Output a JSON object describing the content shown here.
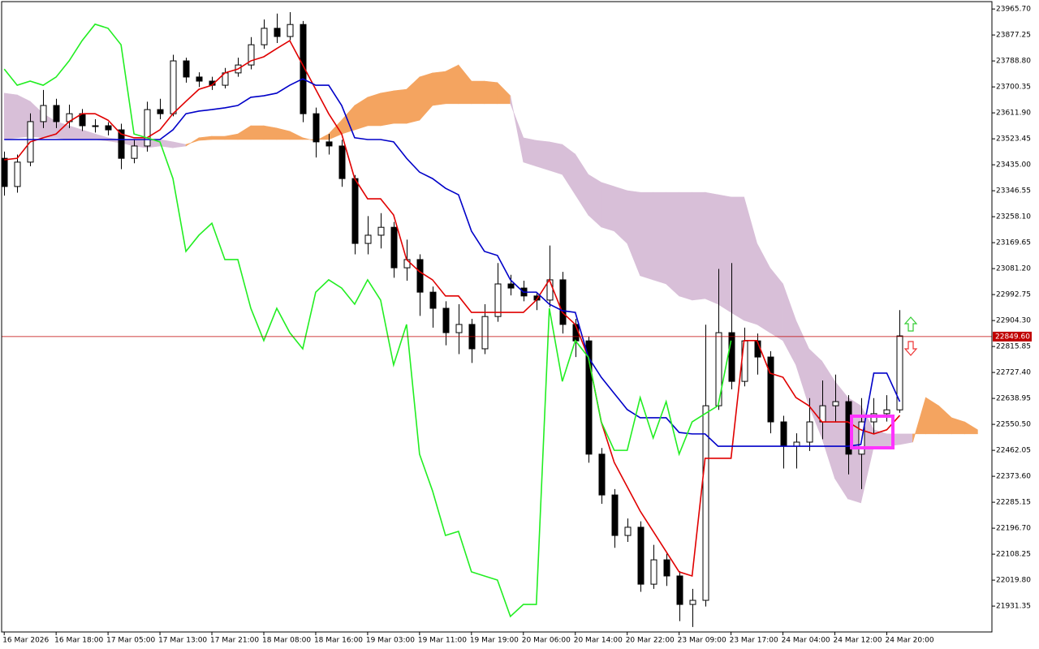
{
  "chart_data": {
    "type": "candlestick",
    "open": [
      23457,
      23361,
      23444,
      23582,
      23637,
      23582,
      23609,
      23568,
      23568,
      23554,
      23457,
      23499,
      23623,
      23609,
      23789,
      23734,
      23720,
      23706,
      23748,
      23775,
      23844,
      23900,
      23872,
      23913,
      23609,
      23513,
      23499,
      23388,
      23167,
      23195,
      23222,
      23084,
      23112,
      23001,
      22946,
      22863,
      22891,
      22808,
      22918,
      23029,
      23015,
      22988,
      22974,
      23043,
      22891,
      22835,
      22449,
      22310,
      22172,
      22200,
      22006,
      22089,
      22034,
      21937,
      21951,
      22614,
      22863,
      22697,
      22835,
      22780,
      22559,
      22476,
      22490,
      22559,
      22614,
      22628,
      22449,
      22559,
      22587,
      22600
    ],
    "high": [
      23480,
      23470,
      23610,
      23690,
      23660,
      23640,
      23625,
      23590,
      23580,
      23575,
      23520,
      23650,
      23660,
      23810,
      23800,
      23750,
      23735,
      23765,
      23800,
      23870,
      23930,
      23950,
      23955,
      23925,
      23630,
      23540,
      23520,
      23400,
      23260,
      23270,
      23240,
      23180,
      23130,
      23020,
      22970,
      22960,
      22910,
      22960,
      23100,
      23060,
      23040,
      23000,
      23160,
      23070,
      22910,
      22850,
      22470,
      22330,
      22230,
      22220,
      22140,
      22110,
      22050,
      21990,
      22890,
      23080,
      23100,
      22880,
      22860,
      22800,
      22580,
      22520,
      22640,
      22700,
      22720,
      22650,
      22640,
      22640,
      22650,
      22940
    ],
    "low": [
      23330,
      23340,
      23430,
      23560,
      23560,
      23560,
      23550,
      23545,
      23535,
      23420,
      23440,
      23480,
      23590,
      23600,
      23715,
      23700,
      23690,
      23695,
      23735,
      23760,
      23830,
      23850,
      23860,
      23580,
      23460,
      23470,
      23360,
      23130,
      23130,
      23150,
      23050,
      23040,
      22920,
      22880,
      22820,
      22790,
      22760,
      22790,
      22900,
      22990,
      22970,
      22940,
      22950,
      22860,
      22780,
      22420,
      22280,
      22130,
      22150,
      21980,
      21990,
      22000,
      21880,
      21860,
      21930,
      22600,
      22670,
      22680,
      22720,
      22520,
      22400,
      22400,
      22460,
      22500,
      22560,
      22380,
      22330,
      22520,
      22560,
      22590
    ],
    "close": [
      23361,
      23444,
      23582,
      23637,
      23582,
      23609,
      23568,
      23568,
      23554,
      23457,
      23499,
      23623,
      23609,
      23789,
      23734,
      23720,
      23706,
      23748,
      23775,
      23844,
      23900,
      23872,
      23913,
      23609,
      23513,
      23499,
      23388,
      23167,
      23195,
      23222,
      23084,
      23112,
      23001,
      22946,
      22863,
      22891,
      22808,
      22918,
      23029,
      23015,
      22988,
      22974,
      23043,
      22891,
      22835,
      22449,
      22310,
      22172,
      22200,
      22006,
      22089,
      22034,
      21937,
      21951,
      22614,
      22863,
      22697,
      22835,
      22780,
      22559,
      22476,
      22490,
      22559,
      22614,
      22628,
      22449,
      22559,
      22587,
      22600,
      22852
    ],
    "up_color": "#ffffff",
    "down_color": "#000000",
    "lines": [
      {
        "color": "#e00000",
        "values": [
          23452,
          23457,
          23513,
          23527,
          23540,
          23582,
          23609,
          23609,
          23587,
          23540,
          23527,
          23527,
          23554,
          23609,
          23651,
          23692,
          23706,
          23748,
          23761,
          23789,
          23803,
          23831,
          23858,
          23775,
          23692,
          23609,
          23540,
          23388,
          23319,
          23319,
          23264,
          23112,
          23071,
          23043,
          22988,
          22988,
          22932,
          22932,
          22932,
          22932,
          22932,
          22974,
          23043,
          22932,
          22891,
          22780,
          22559,
          22421,
          22338,
          22255,
          22186,
          22117,
          22048,
          22034,
          22435,
          22435,
          22435,
          22836,
          22836,
          22725,
          22711,
          22642,
          22614,
          22559,
          22559,
          22559,
          22532,
          22518,
          22532,
          22581
        ]
      },
      {
        "color": "#0000c8",
        "values": [
          23521,
          23521,
          23521,
          23521,
          23521,
          23521,
          23521,
          23521,
          23521,
          23521,
          23521,
          23521,
          23521,
          23554,
          23609,
          23618,
          23623,
          23629,
          23637,
          23665,
          23670,
          23679,
          23706,
          23728,
          23706,
          23706,
          23637,
          23527,
          23521,
          23521,
          23513,
          23457,
          23410,
          23388,
          23355,
          23333,
          23209,
          23140,
          23126,
          23043,
          23001,
          23001,
          22960,
          22938,
          22932,
          22780,
          22711,
          22656,
          22601,
          22573,
          22573,
          22573,
          22523,
          22518,
          22518,
          22476,
          22476,
          22476,
          22476,
          22476,
          22476,
          22476,
          22476,
          22476,
          22476,
          22476,
          22482,
          22725,
          22725,
          22628
        ]
      },
      {
        "color": "#22ee22",
        "values": [
          23761,
          23706,
          23720,
          23706,
          23734,
          23789,
          23858,
          23914,
          23900,
          23844,
          23540,
          23527,
          23513,
          23388,
          23140,
          23195,
          23236,
          23112,
          23112,
          22946,
          22836,
          22946,
          22863,
          22808,
          23001,
          23043,
          23015,
          22960,
          23043,
          22974,
          22753,
          22891,
          22449,
          22324,
          22172,
          22186,
          22048,
          22034,
          22020,
          21896,
          21937,
          21937,
          22946,
          22697,
          22836,
          22780,
          22559,
          22462,
          22462,
          22642,
          22504,
          22628,
          22449,
          22559,
          22587,
          22614,
          22836,
          null,
          null,
          null,
          null,
          null,
          null,
          null,
          null,
          null,
          null,
          null,
          null,
          null
        ]
      }
    ],
    "cloud": {
      "span_a": [
        23521,
        23527,
        23532,
        23527,
        23527,
        23521,
        23521,
        23521,
        23516,
        23510,
        23499,
        23493,
        23499,
        23493,
        23499,
        23527,
        23532,
        23532,
        23540,
        23568,
        23568,
        23560,
        23549,
        23527,
        23516,
        23540,
        23587,
        23637,
        23665,
        23679,
        23687,
        23692,
        23734,
        23748,
        23753,
        23775,
        23720,
        23720,
        23715,
        23670,
        23444,
        23430,
        23416,
        23402,
        23333,
        23264,
        23223,
        23209,
        23167,
        23057,
        23043,
        23029,
        22988,
        22974,
        22979,
        22960,
        22932,
        22905,
        22891,
        22863,
        22836,
        22753,
        22614,
        22504,
        22366,
        22297,
        22283,
        22476,
        22476,
        22482,
        22490,
        22642,
        22614,
        22573,
        22559,
        22532
      ],
      "span_b": [
        23679,
        23673,
        23651,
        23609,
        23582,
        23568,
        23554,
        23540,
        23527,
        23521,
        23521,
        23521,
        23521,
        23513,
        23504,
        23518,
        23521,
        23521,
        23521,
        23521,
        23521,
        23521,
        23521,
        23521,
        23521,
        23521,
        23540,
        23554,
        23568,
        23568,
        23576,
        23576,
        23587,
        23637,
        23643,
        23643,
        23643,
        23643,
        23643,
        23643,
        23527,
        23518,
        23513,
        23504,
        23471,
        23402,
        23375,
        23361,
        23347,
        23341,
        23341,
        23341,
        23341,
        23341,
        23341,
        23333,
        23325,
        23325,
        23167,
        23084,
        23029,
        22905,
        22808,
        22766,
        22697,
        22642,
        22614,
        22532,
        22518,
        22518,
        22518,
        22518,
        22518,
        22518,
        22518,
        22518
      ],
      "a_above_color": "#f4a460",
      "b_above_color": "#d8bfd8"
    },
    "ylim": [
      21843.2,
      23990.9
    ],
    "yticks": [
      {
        "value": 23965.7,
        "label": "23965.70"
      },
      {
        "value": 23877.25,
        "label": "23877.25"
      },
      {
        "value": 23788.8,
        "label": "23788.80"
      },
      {
        "value": 23700.35,
        "label": "23700.35"
      },
      {
        "value": 23611.9,
        "label": "23611.90"
      },
      {
        "value": 23523.45,
        "label": "23523.45"
      },
      {
        "value": 23435,
        "label": "23435.00"
      },
      {
        "value": 23346.55,
        "label": "23346.55"
      },
      {
        "value": 23258.1,
        "label": "23258.10"
      },
      {
        "value": 23169.65,
        "label": "23169.65"
      },
      {
        "value": 23081.2,
        "label": "23081.20"
      },
      {
        "value": 22992.75,
        "label": "22992.75"
      },
      {
        "value": 22904.3,
        "label": "22904.30"
      },
      {
        "value": 22815.85,
        "label": "22815.85"
      },
      {
        "value": 22727.4,
        "label": "22727.40"
      },
      {
        "value": 22638.95,
        "label": "22638.95"
      },
      {
        "value": 22550.5,
        "label": "22550.50"
      },
      {
        "value": 22462.05,
        "label": "22462.05"
      },
      {
        "value": 22373.6,
        "label": "22373.60"
      },
      {
        "value": 22285.15,
        "label": "22285.15"
      },
      {
        "value": 22196.7,
        "label": "22196.70"
      },
      {
        "value": 22108.25,
        "label": "22108.25"
      },
      {
        "value": 22019.8,
        "label": "22019.80"
      },
      {
        "value": 21931.35,
        "label": "21931.35"
      }
    ],
    "xlim": [
      -0.2,
      76.1
    ],
    "xticks": [
      {
        "value": 0,
        "label": "16 Mar 2026"
      },
      {
        "value": 4,
        "label": "16 Mar 18:00"
      },
      {
        "value": 8,
        "label": "17 Mar 05:00"
      },
      {
        "value": 12,
        "label": "17 Mar 13:00"
      },
      {
        "value": 16,
        "label": "17 Mar 21:00"
      },
      {
        "value": 20,
        "label": "18 Mar 08:00"
      },
      {
        "value": 24,
        "label": "18 Mar 16:00"
      },
      {
        "value": 28,
        "label": "19 Mar 03:00"
      },
      {
        "value": 32,
        "label": "19 Mar 11:00"
      },
      {
        "value": 36,
        "label": "19 Mar 19:00"
      },
      {
        "value": 40,
        "label": "20 Mar 06:00"
      },
      {
        "value": 44,
        "label": "20 Mar 14:00"
      },
      {
        "value": 48,
        "label": "20 Mar 22:00"
      },
      {
        "value": 52,
        "label": "23 Mar 09:00"
      },
      {
        "value": 56,
        "label": "23 Mar 17:00"
      },
      {
        "value": 60,
        "label": "24 Mar 04:00"
      },
      {
        "value": 64,
        "label": "24 Mar 12:00"
      },
      {
        "value": 68,
        "label": "24 Mar 20:00"
      }
    ],
    "current_price": {
      "value": 22849.6,
      "label": "22849.60",
      "color": "#c00000"
    }
  }
}
